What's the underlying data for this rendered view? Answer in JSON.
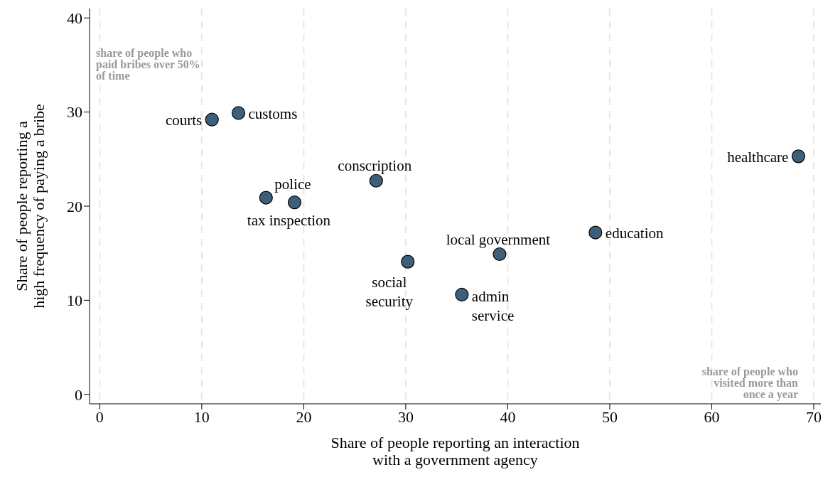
{
  "chart_data": {
    "type": "scatter",
    "xlabel": "Share of people reporting an interaction\nwith a government agency",
    "ylabel": "Share of people reporting a\nhigh frequency of paying a bribe",
    "x": [
      11.0,
      13.6,
      16.3,
      19.1,
      27.1,
      30.2,
      35.5,
      39.2,
      48.6,
      68.5
    ],
    "series": [
      {
        "color": "#3d5f7a",
        "values": [
          29.2,
          29.9,
          20.9,
          20.4,
          22.7,
          14.1,
          10.6,
          14.9,
          17.2,
          25.3
        ]
      }
    ],
    "xlim": [
      -1,
      70.7
    ],
    "xticks": [
      0,
      10,
      20,
      30,
      40,
      50,
      60,
      70
    ],
    "ylim": [
      -1,
      41
    ],
    "yticks": [
      0,
      10,
      20,
      30,
      40
    ],
    "grid": true,
    "marker": "circle",
    "legend": false,
    "annotations": [
      {
        "text": "courts",
        "x": 11.0,
        "y": 29.2
      },
      {
        "text": "customs",
        "x": 13.6,
        "y": 29.9
      },
      {
        "text": "police",
        "x": 16.3,
        "y": 20.9
      },
      {
        "text": "tax inspection",
        "x": 19.1,
        "y": 20.4
      },
      {
        "text": "conscription",
        "x": 27.1,
        "y": 22.7
      },
      {
        "text": "social\nsecurity",
        "x": 30.2,
        "y": 14.1
      },
      {
        "text": "admin\nservice",
        "x": 35.5,
        "y": 10.6
      },
      {
        "text": "local government",
        "x": 39.2,
        "y": 14.9
      },
      {
        "text": "education",
        "x": 48.6,
        "y": 17.2
      },
      {
        "text": "healthcare",
        "x": 68.5,
        "y": 25.3
      },
      "share of people who\npaid bribes over 50%\nof time",
      "share of people who\nvisited more than\nonce a year"
    ]
  }
}
